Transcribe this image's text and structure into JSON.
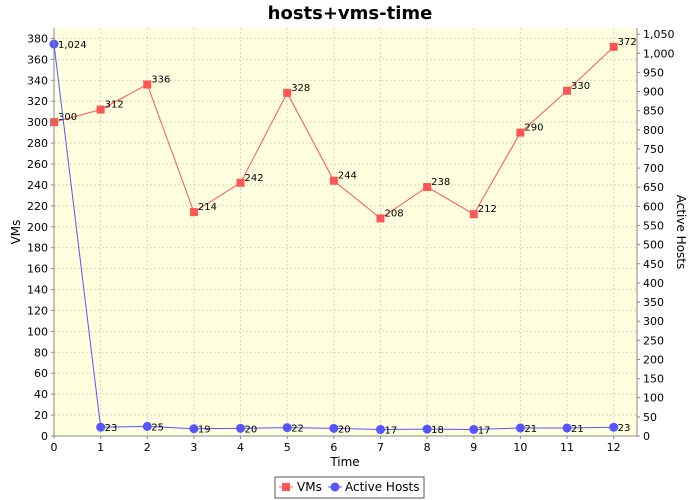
{
  "chart_data": {
    "type": "line",
    "title": "hosts+vms-time",
    "xlabel": "Time",
    "ylabel": "VMs",
    "y2label": "Active Hosts",
    "x": [
      0,
      1,
      2,
      3,
      4,
      5,
      6,
      7,
      8,
      9,
      10,
      11,
      12
    ],
    "xlim": [
      0,
      12.5
    ],
    "ylim": [
      0,
      390
    ],
    "y2lim": [
      0,
      1066
    ],
    "x_ticks": [
      "0",
      "1",
      "2",
      "3",
      "4",
      "5",
      "6",
      "7",
      "8",
      "9",
      "10",
      "11",
      "12"
    ],
    "y_ticks": [
      0,
      20,
      40,
      60,
      80,
      100,
      120,
      140,
      160,
      180,
      200,
      220,
      240,
      260,
      280,
      300,
      320,
      340,
      360,
      380
    ],
    "y2_ticks": [
      0,
      50,
      100,
      150,
      200,
      250,
      300,
      350,
      400,
      450,
      500,
      550,
      600,
      650,
      700,
      750,
      800,
      850,
      900,
      950,
      1000,
      1050
    ],
    "y2_tick_labels": [
      "0",
      "50",
      "100",
      "150",
      "200",
      "250",
      "300",
      "350",
      "400",
      "450",
      "500",
      "550",
      "600",
      "650",
      "700",
      "750",
      "800",
      "850",
      "900",
      "950",
      "1,000",
      "1,050"
    ],
    "series": [
      {
        "name": "VMs",
        "axis": "left",
        "color": "#ff5555",
        "marker": "square",
        "values": [
          300,
          312,
          336,
          214,
          242,
          328,
          244,
          208,
          238,
          212,
          290,
          330,
          372
        ],
        "labels": [
          "300",
          "312",
          "336",
          "214",
          "242",
          "328",
          "244",
          "208",
          "238",
          "212",
          "290",
          "330",
          "372"
        ]
      },
      {
        "name": "Active Hosts",
        "axis": "right",
        "color": "#5555ff",
        "marker": "circle",
        "values": [
          1024,
          23,
          25,
          19,
          20,
          22,
          20,
          17,
          18,
          17,
          21,
          21,
          23
        ],
        "labels": [
          "1,024",
          "23",
          "25",
          "19",
          "20",
          "22",
          "20",
          "17",
          "18",
          "17",
          "21",
          "21",
          "23"
        ]
      }
    ],
    "grid": true,
    "plot_background": "#ffffe0",
    "legend_position": "bottom"
  }
}
